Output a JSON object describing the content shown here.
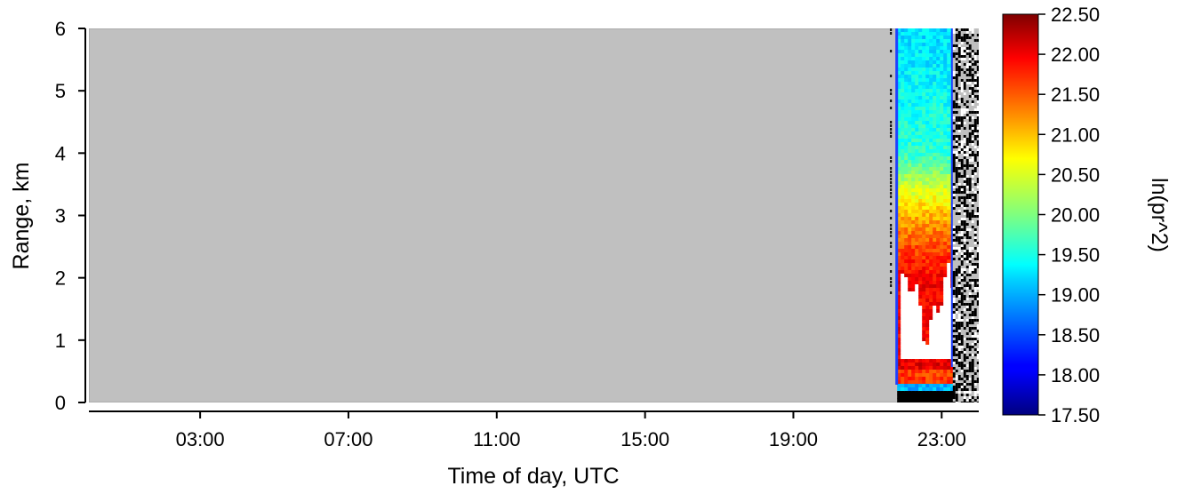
{
  "chart_data": {
    "type": "heatmap",
    "title": "",
    "xlabel": "Time of day, UTC",
    "ylabel": "Range, km",
    "colorbar_label": "ln(pr^2)",
    "x_ticks": [
      "03:00",
      "07:00",
      "11:00",
      "15:00",
      "19:00",
      "23:00"
    ],
    "x_tick_hours": [
      3,
      7,
      11,
      15,
      19,
      23
    ],
    "x_range_hours": [
      0,
      24
    ],
    "y_ticks": [
      0,
      1,
      2,
      3,
      4,
      5,
      6
    ],
    "ylim": [
      0,
      6
    ],
    "colorbar_ticks": [
      "17.50",
      "18.00",
      "18.50",
      "19.00",
      "19.50",
      "20.00",
      "20.50",
      "21.00",
      "21.50",
      "22.00",
      "22.50"
    ],
    "clim": [
      17.5,
      22.5
    ],
    "colormap": "jet",
    "no_data_color": "#c0c0c0",
    "data_window_hours": [
      21.8,
      23.3
    ],
    "noise_window_hours": [
      23.3,
      24.0
    ],
    "profile": [
      {
        "range_km": 0.1,
        "value": 17.5
      },
      {
        "range_km": 0.25,
        "value": 18.8
      },
      {
        "range_km": 0.4,
        "value": 21.8
      },
      {
        "range_km": 0.6,
        "value": 22.2
      },
      {
        "range_km": 1.3,
        "value": "saturated"
      },
      {
        "range_km": 2.0,
        "value": 21.9
      },
      {
        "range_km": 2.5,
        "value": 21.5
      },
      {
        "range_km": 3.0,
        "value": 21.0
      },
      {
        "range_km": 3.5,
        "value": 20.3
      },
      {
        "range_km": 4.0,
        "value": 19.6
      },
      {
        "range_km": 5.0,
        "value": 19.3
      },
      {
        "range_km": 6.0,
        "value": 19.2
      }
    ]
  }
}
